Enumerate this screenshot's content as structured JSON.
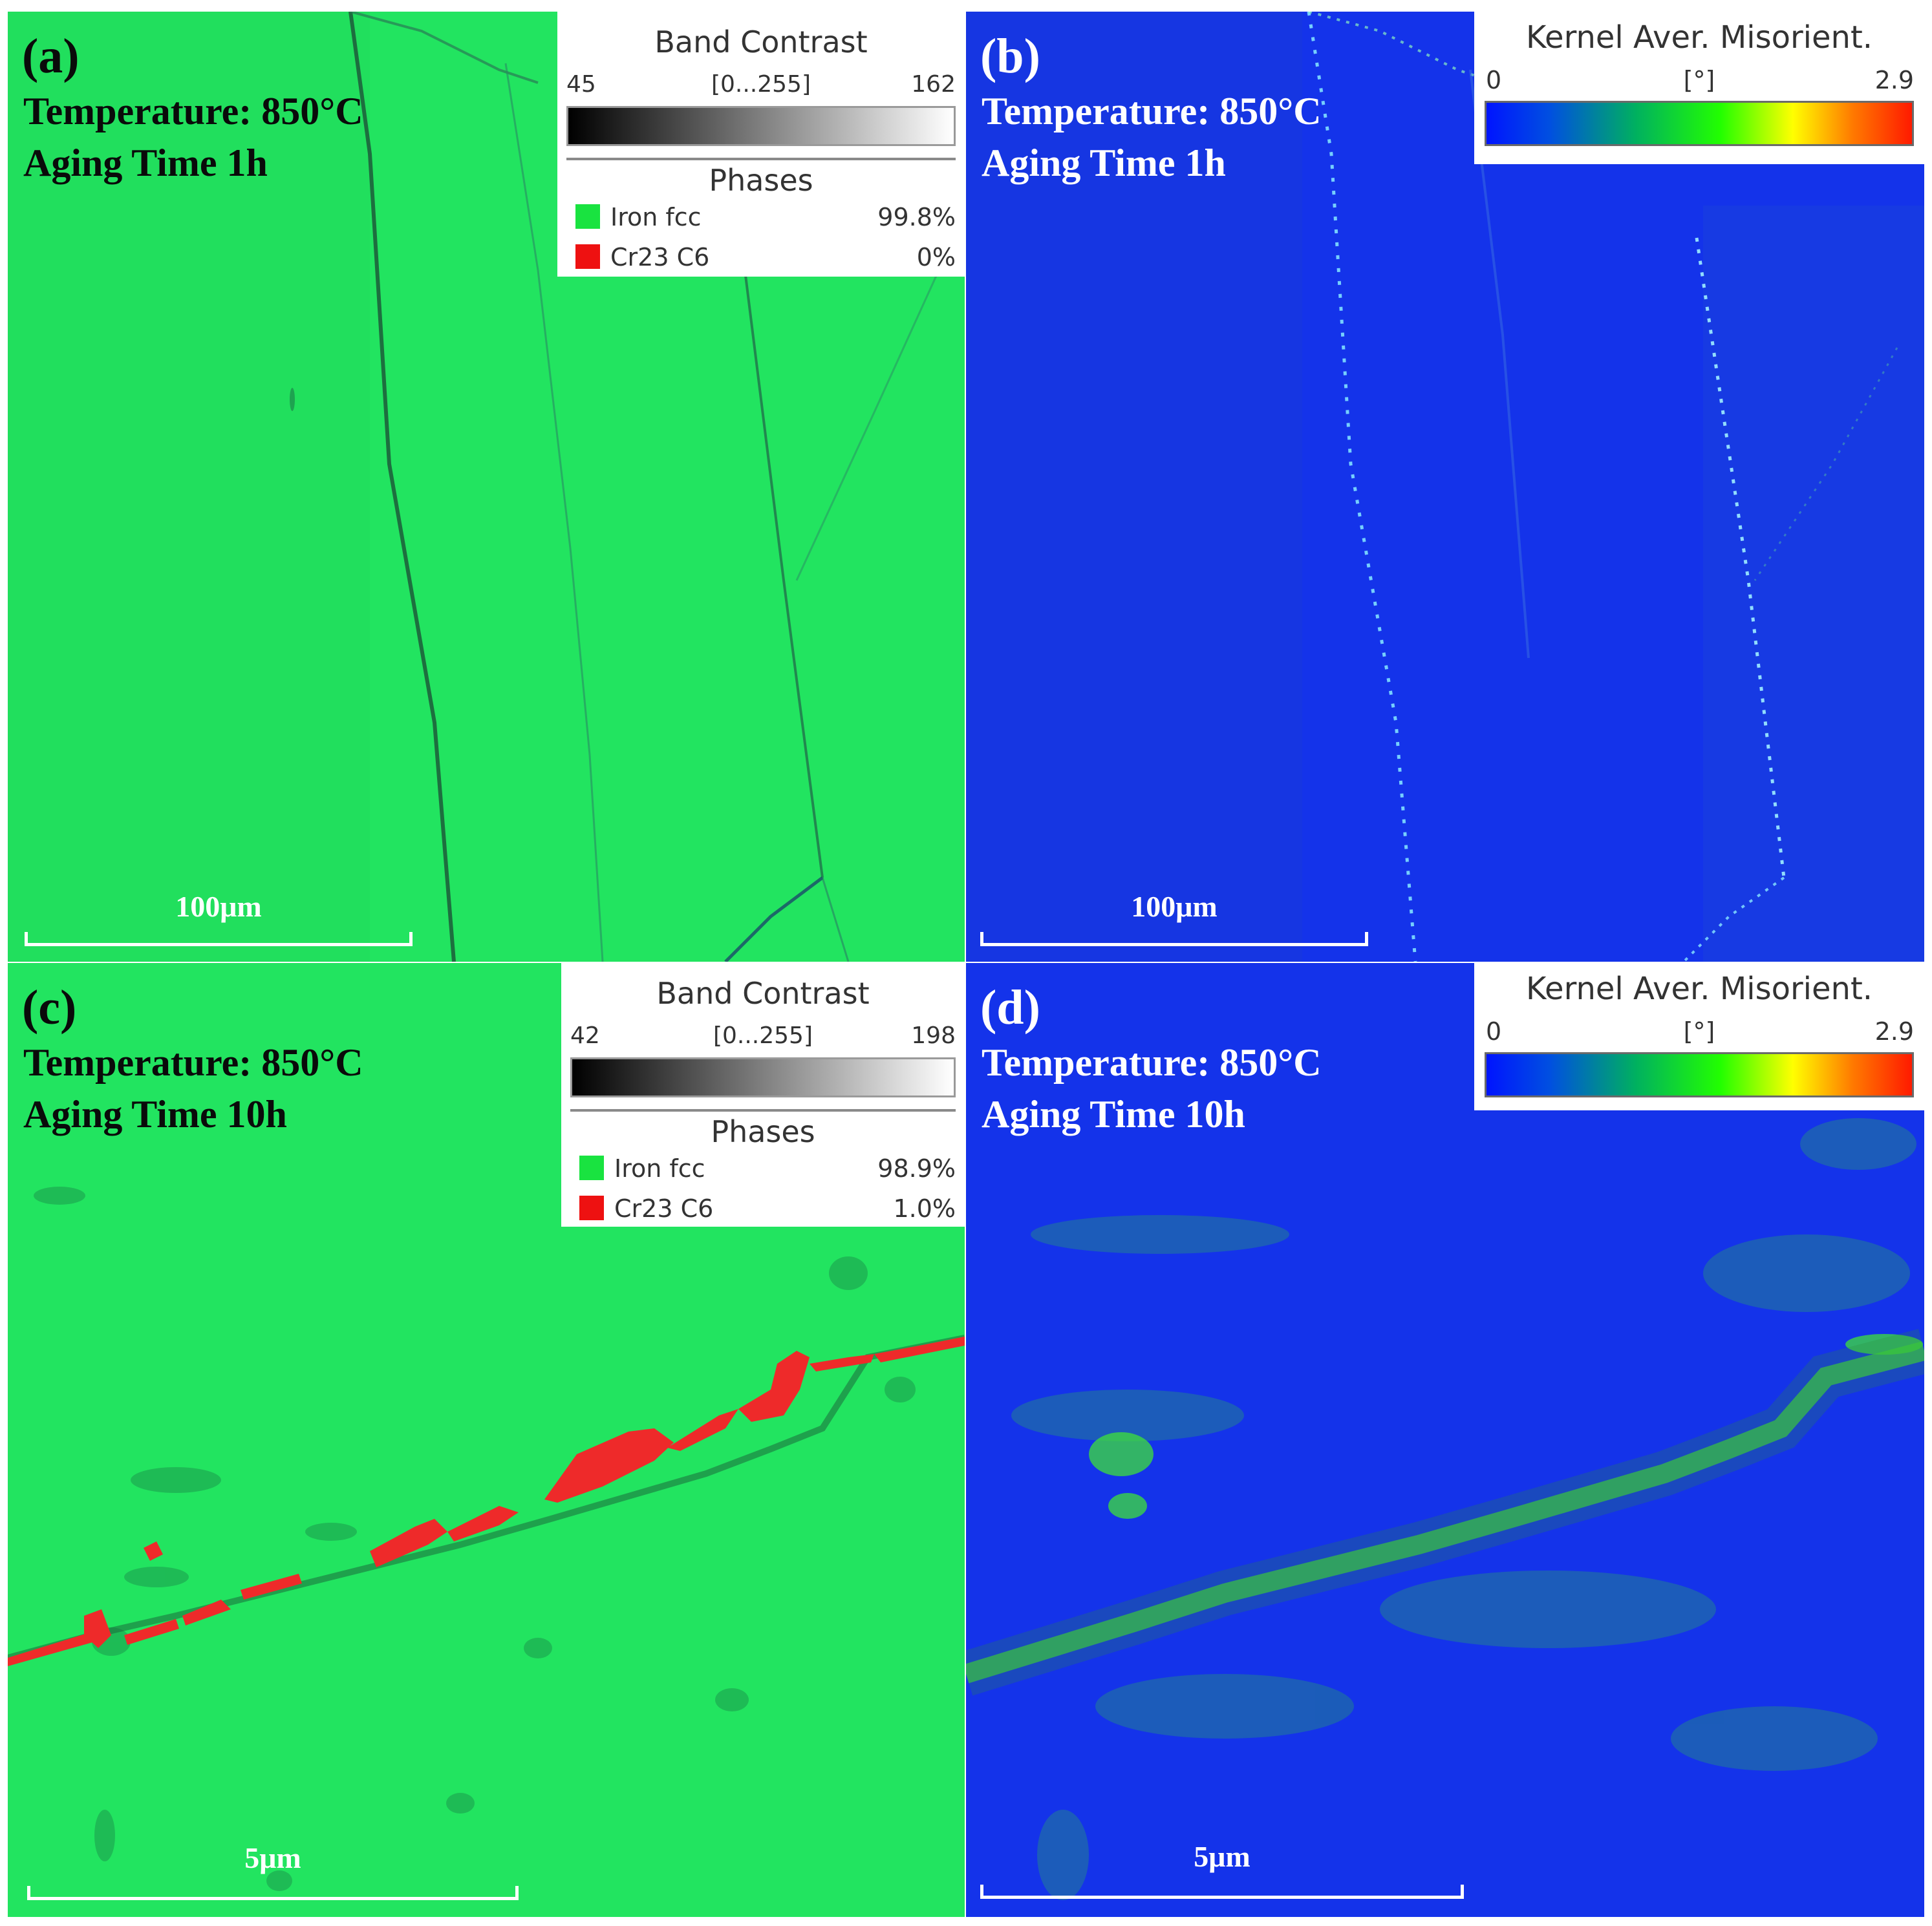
{
  "panels": {
    "a": {
      "letter": "(a)",
      "temperature": "Temperature:  850°C",
      "aging": "Aging Time 1h",
      "scale": "100μm"
    },
    "b": {
      "letter": "(b)",
      "temperature": "Temperature:  850°C",
      "aging": "Aging Time 1h",
      "scale": "100μm"
    },
    "c": {
      "letter": "(c)",
      "temperature": "Temperature:  850°C",
      "aging": "Aging Time 10h",
      "scale": "5μm"
    },
    "d": {
      "letter": "(d)",
      "temperature": "Temperature:  850°C",
      "aging": "Aging Time 10h",
      "scale": "5μm"
    }
  },
  "band_contrast_legend_a": {
    "title": "Band Contrast",
    "min": "45",
    "range": "[0...255]",
    "max": "162",
    "phases_title": "Phases",
    "phases": [
      {
        "name": "Iron fcc",
        "percent": "99.8%",
        "color": "#19e340"
      },
      {
        "name": "Cr23 C6",
        "percent": "0%",
        "color": "#ee1111"
      }
    ]
  },
  "band_contrast_legend_c": {
    "title": "Band Contrast",
    "min": "42",
    "range": "[0...255]",
    "max": "198",
    "phases_title": "Phases",
    "phases": [
      {
        "name": "Iron fcc",
        "percent": "98.9%",
        "color": "#19e340"
      },
      {
        "name": "Cr23 C6",
        "percent": "1.0%",
        "color": "#ee1111"
      }
    ]
  },
  "kam_legend_b": {
    "title": "Kernel Aver. Misorient.",
    "min": "0",
    "unit": "[°]",
    "max": "2.9"
  },
  "kam_legend_d": {
    "title": "Kernel Aver. Misorient.",
    "min": "0",
    "unit": "[°]",
    "max": "2.9"
  },
  "colors": {
    "fcc_green": "#22e460",
    "kam_blue": "#1433ea",
    "carbide_red": "#ee2a2a"
  }
}
